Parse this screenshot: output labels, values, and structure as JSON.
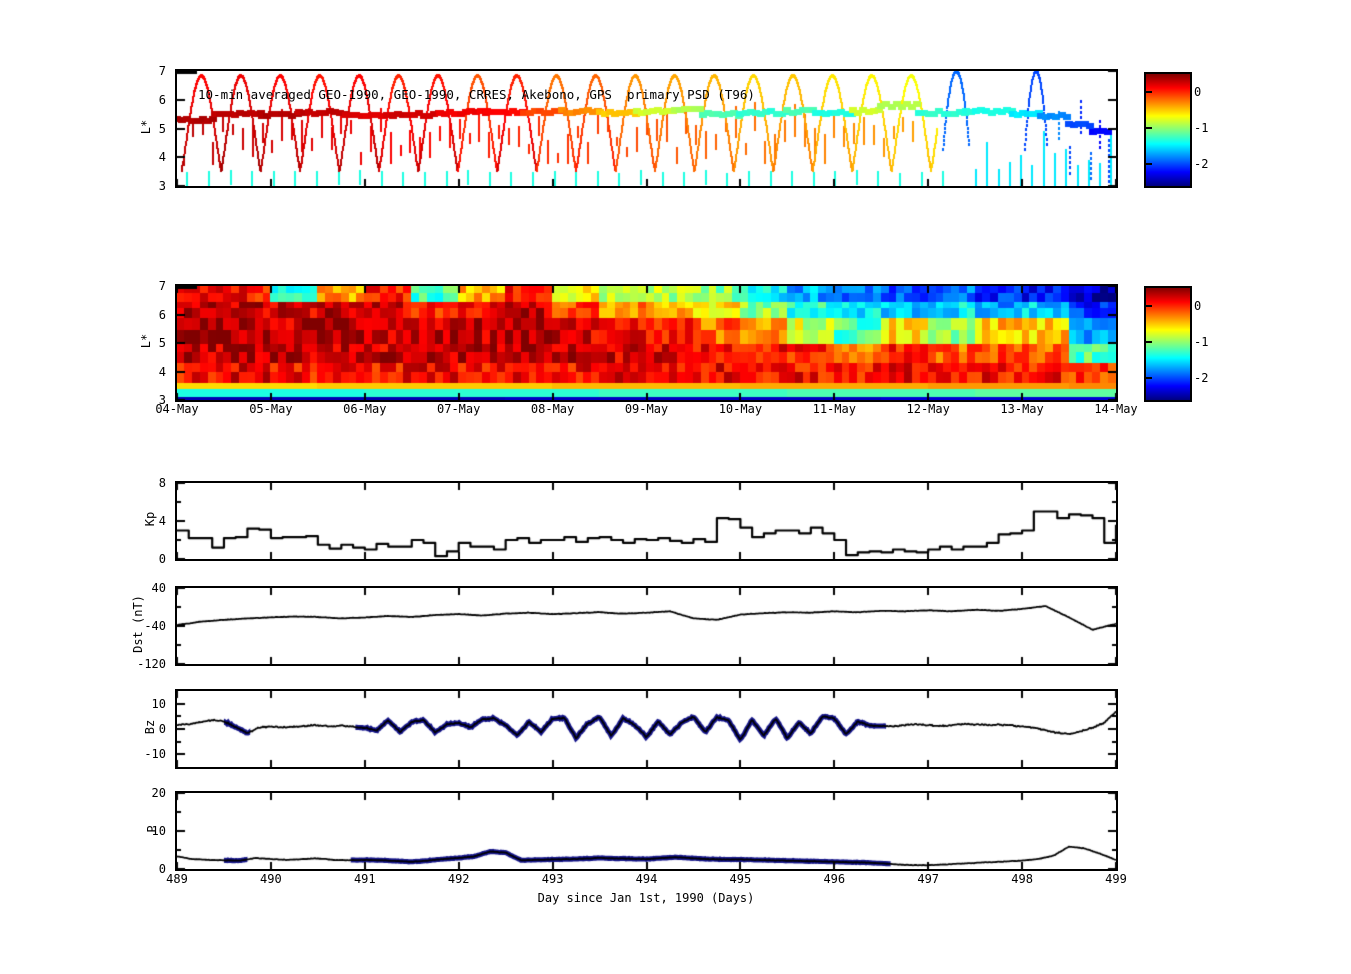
{
  "figure": {
    "background": "#ffffff",
    "frame_color": "#000000",
    "trace_color": "#000000",
    "overlay_color": "#14148c"
  },
  "axis": {
    "xlabel": "Day since Jan 1st, 1990 (Days)",
    "xticks": [
      489,
      490,
      491,
      492,
      493,
      494,
      495,
      496,
      497,
      498,
      499
    ],
    "dates": [
      "04-May",
      "05-May",
      "06-May",
      "07-May",
      "08-May",
      "09-May",
      "10-May",
      "11-May",
      "12-May",
      "13-May",
      "14-May"
    ]
  },
  "colorbar": {
    "ticks": [
      "0",
      "-1",
      "-2"
    ],
    "tick_values": [
      0,
      -1,
      -2
    ],
    "clim": [
      -2.6,
      0.5
    ]
  },
  "chart_data": [
    {
      "type": "scatter",
      "title": "10-min averaged GEO-1990, GEO-1990, CRRES, Akebono, GPS  primary PSD (T96)",
      "ylabel": "L*",
      "ylim": [
        3,
        7
      ],
      "xlim": [
        489,
        499
      ],
      "yticks": [
        "7",
        "6",
        "5",
        "4",
        "3"
      ],
      "colormap": "jet",
      "geo_track_segments_x0_x1_L_value": [
        [
          489.0,
          489.4,
          5.3,
          0.35
        ],
        [
          489.4,
          489.9,
          5.5,
          0.32
        ],
        [
          489.9,
          490.3,
          5.45,
          0.35
        ],
        [
          490.3,
          490.8,
          5.55,
          0.3
        ],
        [
          490.8,
          491.3,
          5.45,
          0.22
        ],
        [
          491.3,
          491.8,
          5.5,
          0.25
        ],
        [
          491.8,
          492.3,
          5.55,
          0.15
        ],
        [
          492.3,
          492.7,
          5.6,
          0.1
        ],
        [
          492.7,
          493.1,
          5.55,
          -0.1
        ],
        [
          493.1,
          493.5,
          5.6,
          -0.3
        ],
        [
          493.5,
          493.9,
          5.55,
          -0.5
        ],
        [
          493.9,
          494.3,
          5.6,
          -0.8
        ],
        [
          494.3,
          494.6,
          5.7,
          -0.9
        ],
        [
          494.6,
          495.0,
          5.5,
          -1.2
        ],
        [
          495.0,
          495.5,
          5.55,
          -1.3
        ],
        [
          495.5,
          495.8,
          5.6,
          -1.2
        ],
        [
          495.8,
          496.2,
          5.55,
          -1.35
        ],
        [
          496.2,
          496.5,
          5.6,
          -0.8
        ],
        [
          496.5,
          496.9,
          5.8,
          -0.9
        ],
        [
          496.9,
          497.4,
          5.55,
          -1.3
        ],
        [
          497.4,
          497.9,
          5.6,
          -1.35
        ],
        [
          497.9,
          498.2,
          5.5,
          -1.5
        ],
        [
          498.2,
          498.5,
          5.45,
          -1.8
        ],
        [
          498.5,
          498.75,
          5.15,
          -2.0
        ],
        [
          498.75,
          498.95,
          4.85,
          -2.2
        ]
      ],
      "crres_arc_start": 489.05,
      "crres_arc_period": 0.42,
      "crres_arc_end": 497.1,
      "crres_arc_Lmin": 3.55,
      "crres_arc_Lmax": 6.85,
      "crres_arc_values": [
        0.2,
        0.25,
        0.2,
        0.15,
        0.2,
        0.1,
        0.15,
        -0.05,
        0.1,
        -0.15,
        -0.1,
        -0.25,
        -0.3,
        -0.35,
        -0.45,
        -0.4,
        -0.5,
        -0.55,
        -0.6,
        -0.65
      ],
      "blue_arcs_xc_w_Lpeak_value": [
        [
          497.3,
          0.14,
          7.0,
          -1.9
        ],
        [
          498.15,
          0.12,
          7.0,
          -2.0
        ]
      ],
      "blue_dashes_x_L0_L1_value": [
        [
          498.38,
          4.6,
          5.6,
          -1.8
        ],
        [
          498.5,
          3.4,
          4.4,
          -2.0
        ],
        [
          498.62,
          4.8,
          5.9,
          -2.1
        ],
        [
          498.72,
          3.2,
          4.2,
          -1.9
        ],
        [
          498.82,
          4.3,
          5.3,
          -2.2
        ],
        [
          498.92,
          3.1,
          4.6,
          -2.0
        ]
      ],
      "akebono_dashes": {
        "x_start": 489.1,
        "x_step": 0.23,
        "x_end": 497.3,
        "L0": 3.0,
        "L1": 3.45,
        "value": -1.35
      },
      "end_dashes": {
        "x_start": 497.5,
        "x_step": 0.12,
        "x_end": 499.0,
        "L0": 3.0,
        "value": -1.5
      },
      "red_dashes": {
        "x_start": 489.06,
        "x_step": 0.105,
        "x_end": 496.9,
        "L_base": 3.7,
        "value_at_489": 0.33,
        "value_slope": -0.09
      }
    },
    {
      "type": "heatmap",
      "ylabel": "L*",
      "ylim": [
        3,
        7
      ],
      "xlim": [
        489,
        499
      ],
      "yticks": [
        "7",
        "6",
        "5",
        "4",
        "3"
      ],
      "colormap": "jet",
      "col_start": 489.0,
      "col_width": 0.5,
      "band_L_edges": [
        3.0,
        3.15,
        3.4,
        3.6,
        4.3,
        5.0,
        5.9,
        6.5,
        7.0
      ],
      "grid_bottom_to_top": [
        [
          -2.45,
          -1.35,
          -0.55,
          0.1,
          0.3,
          0.35,
          0.3,
          0.15
        ],
        [
          -2.45,
          -1.35,
          -0.55,
          0.15,
          0.35,
          0.35,
          0.25,
          0.1
        ],
        [
          -2.45,
          -1.35,
          -0.55,
          0.1,
          0.3,
          0.3,
          0.2,
          -1.3
        ],
        [
          -2.45,
          -1.35,
          -0.5,
          0.15,
          0.3,
          0.35,
          0.3,
          -0.4
        ],
        [
          -2.45,
          -1.3,
          -0.5,
          0.1,
          0.25,
          0.3,
          0.2,
          0.0
        ],
        [
          -2.45,
          -1.3,
          -0.5,
          0.15,
          0.3,
          0.25,
          0.0,
          -1.2
        ],
        [
          -2.45,
          -1.3,
          -0.5,
          0.1,
          0.3,
          0.3,
          0.1,
          -0.4
        ],
        [
          -2.4,
          -1.3,
          -0.5,
          0.15,
          0.35,
          0.35,
          0.3,
          0.1
        ],
        [
          -2.4,
          -1.3,
          -0.45,
          0.1,
          0.3,
          0.2,
          -0.1,
          -0.6
        ],
        [
          -2.4,
          -1.25,
          -0.45,
          0.15,
          0.25,
          0.1,
          -0.3,
          -0.8
        ],
        [
          -2.4,
          -1.25,
          -0.45,
          0.1,
          0.2,
          0.0,
          -0.5,
          -0.9
        ],
        [
          -2.4,
          -1.25,
          -0.45,
          0.15,
          0.15,
          -0.2,
          -0.6,
          -1.0
        ],
        [
          -2.4,
          -1.25,
          -0.4,
          0.1,
          0.1,
          -0.4,
          -1.0,
          -1.4
        ],
        [
          -2.4,
          -1.2,
          -0.4,
          0.1,
          0.0,
          -0.8,
          -1.3,
          -1.7
        ],
        [
          -2.4,
          -1.2,
          -0.4,
          0.05,
          -0.3,
          -1.2,
          -1.5,
          -1.9
        ],
        [
          -2.35,
          -1.2,
          -0.4,
          0.1,
          0.0,
          -0.6,
          -1.6,
          -2.0
        ],
        [
          -2.35,
          -1.2,
          -0.35,
          0.05,
          -0.2,
          -1.0,
          -1.5,
          -1.9
        ],
        [
          -2.35,
          -1.15,
          -0.35,
          0.1,
          -0.1,
          -0.5,
          -1.7,
          -2.1
        ],
        [
          -2.35,
          -1.15,
          -0.35,
          0.05,
          -0.2,
          -0.5,
          -1.6,
          -2.2
        ],
        [
          -2.35,
          -1.15,
          -0.3,
          -0.1,
          -1.2,
          -1.7,
          -2.1,
          -2.4
        ]
      ]
    },
    {
      "type": "line",
      "style": "step",
      "ylabel": "Kp",
      "ylim": [
        0,
        8
      ],
      "xlim": [
        489,
        499
      ],
      "yticks": [
        "8",
        "4",
        "0"
      ],
      "ytick_values": [
        8,
        4,
        0
      ],
      "yminor": [
        6,
        2
      ],
      "values": [
        3.0,
        2.2,
        2.2,
        1.2,
        2.2,
        2.3,
        3.2,
        3.1,
        2.2,
        2.3,
        2.3,
        2.4,
        1.5,
        1.1,
        1.5,
        1.2,
        1.0,
        1.6,
        1.3,
        1.3,
        2.0,
        1.7,
        0.3,
        0.8,
        1.7,
        1.3,
        1.3,
        1.0,
        2.0,
        2.2,
        1.7,
        2.0,
        2.0,
        2.3,
        1.8,
        2.2,
        2.3,
        2.0,
        1.7,
        2.1,
        2.0,
        2.2,
        1.9,
        1.7,
        2.1,
        1.8,
        4.3,
        4.2,
        3.3,
        2.3,
        2.7,
        3.0,
        3.0,
        2.7,
        3.3,
        2.7,
        2.0,
        0.4,
        0.7,
        0.8,
        0.7,
        1.0,
        0.8,
        0.7,
        1.0,
        1.3,
        1.0,
        1.3,
        1.3,
        1.7,
        2.6,
        2.7,
        3.0,
        5.0,
        5.0,
        4.3,
        4.7,
        4.6,
        4.3,
        1.7,
        3.6
      ]
    },
    {
      "type": "line",
      "ylabel": "Dst (nT)",
      "ylim": [
        -120,
        40
      ],
      "xlim": [
        489,
        499
      ],
      "yticks": [
        "40",
        "-40",
        "-120"
      ],
      "ytick_values": [
        40,
        -40,
        -120
      ],
      "yminor": [
        0,
        -80
      ],
      "values": [
        -38,
        -31,
        -27,
        -24,
        -22,
        -20,
        -21,
        -24,
        -22,
        -19,
        -21,
        -17,
        -15,
        -18,
        -14,
        -12,
        -15,
        -13,
        -11,
        -14,
        -12,
        -9,
        -24,
        -27,
        -16,
        -13,
        -11,
        -12,
        -9,
        -11,
        -8,
        -9,
        -7,
        -9,
        -6,
        -8,
        -4,
        2,
        -22,
        -48,
        -35
      ]
    },
    {
      "type": "line",
      "ylabel": "Bz",
      "ylim": [
        -15,
        15
      ],
      "xlim": [
        489,
        499
      ],
      "yticks": [
        "10",
        "0",
        "-10"
      ],
      "ytick_values": [
        10,
        0,
        -10
      ],
      "yminor": [
        5,
        -5
      ],
      "overlay_segments": [
        [
          489.5,
          489.78
        ],
        [
          490.9,
          496.55
        ]
      ],
      "values": [
        1.5,
        2.0,
        2.6,
        3.6,
        3.0,
        0.8,
        -1.6,
        0.6,
        0.9,
        0.6,
        0.9,
        1.2,
        1.5,
        1.0,
        1.4,
        0.8,
        0.5,
        -0.6,
        3.4,
        -1.2,
        2.8,
        3.6,
        -1.4,
        1.8,
        2.4,
        0.6,
        3.8,
        4.2,
        1.4,
        -2.4,
        2.8,
        -1.2,
        4.0,
        4.4,
        -3.6,
        2.2,
        4.6,
        -2.6,
        4.2,
        1.6,
        -3.2,
        3.0,
        -2.2,
        2.6,
        4.8,
        -1.2,
        4.6,
        3.4,
        -4.4,
        3.6,
        -2.6,
        4.2,
        -3.6,
        2.6,
        -1.8,
        5.0,
        4.2,
        -2.0,
        3.0,
        1.4,
        1.2,
        1.0,
        1.6,
        1.8,
        1.5,
        1.2,
        1.5,
        2.0,
        1.8,
        1.5,
        1.8,
        1.5,
        1.0,
        0.5,
        -0.5,
        -1.5,
        -2.0,
        -1.0,
        0.5,
        2.5,
        7.0
      ]
    },
    {
      "type": "line",
      "ylabel": "P",
      "ylim": [
        0,
        20
      ],
      "xlim": [
        489,
        499
      ],
      "yticks": [
        "20",
        "10",
        "0"
      ],
      "ytick_values": [
        20,
        10,
        0
      ],
      "yminor": [
        15,
        5
      ],
      "overlay_segments": [
        [
          489.5,
          489.75
        ],
        [
          490.85,
          496.6
        ]
      ],
      "values": [
        3.3,
        2.6,
        2.4,
        2.3,
        2.2,
        2.9,
        2.6,
        2.4,
        2.6,
        2.8,
        2.4,
        2.3,
        2.4,
        2.3,
        2.1,
        1.9,
        2.2,
        2.6,
        2.9,
        3.3,
        4.6,
        4.3,
        2.3,
        2.4,
        2.5,
        2.6,
        2.7,
        2.9,
        2.8,
        2.7,
        2.6,
        2.9,
        3.1,
        2.8,
        2.6,
        2.5,
        2.5,
        2.4,
        2.3,
        2.2,
        2.1,
        2.0,
        1.9,
        1.8,
        1.7,
        1.5,
        1.2,
        1.0,
        1.0,
        1.2,
        1.4,
        1.6,
        1.8,
        2.0,
        2.2,
        2.6,
        3.5,
        5.9,
        5.4,
        4.0,
        2.4
      ]
    }
  ]
}
